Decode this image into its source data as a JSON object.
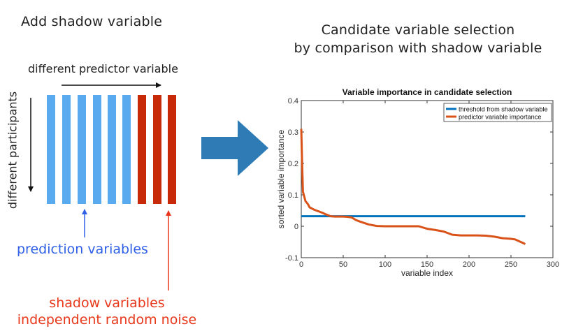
{
  "left_panel": {
    "title": "Add shadow variable",
    "predictor_axis_label": "different predictor variable",
    "participants_axis_label": "different participants",
    "prediction_label": "prediction variables",
    "shadow_label_line1": "shadow variables",
    "shadow_label_line2": "independent random noise",
    "prediction_bar_count": 6,
    "shadow_bar_count": 3,
    "colors": {
      "prediction": "#5aaaf0",
      "shadow": "#c72a08",
      "prediction_text": "#3060e6",
      "shadow_text": "#e8381c"
    }
  },
  "transition": {
    "icon": "right-arrow-icon",
    "color": "#2e7bb5"
  },
  "right_panel": {
    "title_line1": "Candidate variable selection",
    "title_line2": "by comparison with shadow variable"
  },
  "chart_data": {
    "type": "line",
    "title": "Variable importance in candidate selection",
    "xlabel": "variable index",
    "ylabel": "sorted variable importance",
    "xlim": [
      0,
      300
    ],
    "ylim": [
      -0.1,
      0.4
    ],
    "xticks": [
      0,
      50,
      100,
      150,
      200,
      250,
      300
    ],
    "yticks": [
      -0.1,
      0,
      0.1,
      0.2,
      0.3,
      0.4
    ],
    "ytick_labels": [
      "-0.1",
      "0",
      "0.1",
      "0.2",
      "0.3",
      "0.4"
    ],
    "grid": false,
    "legend_position": "top-right",
    "series": [
      {
        "name": "threshold from shadow variable",
        "color": "#0072bd",
        "x": [
          0,
          267
        ],
        "y": [
          0.032,
          0.032
        ]
      },
      {
        "name": "predictor variable importance",
        "color": "#d95319",
        "x": [
          0,
          1,
          2,
          3,
          5,
          8,
          10,
          15,
          20,
          25,
          30,
          35,
          40,
          50,
          55,
          60,
          65,
          70,
          80,
          90,
          100,
          110,
          120,
          130,
          140,
          150,
          160,
          170,
          180,
          190,
          200,
          210,
          220,
          230,
          240,
          250,
          255,
          260,
          265,
          267
        ],
        "y": [
          0.31,
          0.2,
          0.11,
          0.1,
          0.08,
          0.07,
          0.06,
          0.053,
          0.048,
          0.043,
          0.037,
          0.032,
          0.031,
          0.031,
          0.03,
          0.028,
          0.02,
          0.015,
          0.006,
          0.001,
          0.0,
          0.0,
          0.0,
          0.0,
          0.0,
          -0.008,
          -0.012,
          -0.017,
          -0.027,
          -0.029,
          -0.029,
          -0.029,
          -0.03,
          -0.033,
          -0.038,
          -0.04,
          -0.042,
          -0.048,
          -0.054,
          -0.057
        ]
      }
    ]
  }
}
